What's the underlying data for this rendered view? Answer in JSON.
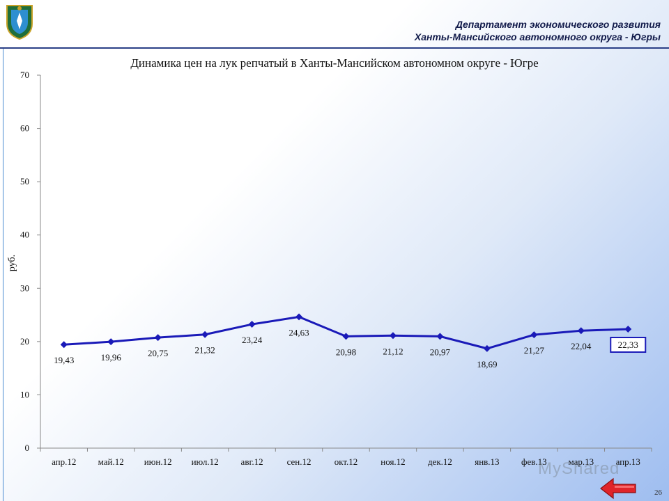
{
  "header": {
    "department_line1": "Департамент экономического развития",
    "department_line2": "Ханты-Мансийского автономного округа - Югры",
    "logo_icon": "coat-of-arms-icon"
  },
  "watermark": "MyShared",
  "page_number": "26",
  "nav": {
    "back_icon": "red-arrow-left-icon"
  },
  "chart_data": {
    "type": "line",
    "title": "Динамика цен на лук репчатый в Ханты-Мансийском автономном округе - Югре",
    "ylabel": "руб.",
    "xlabel": "",
    "categories": [
      "апр.12",
      "май.12",
      "июн.12",
      "июл.12",
      "авг.12",
      "сен.12",
      "окт.12",
      "ноя.12",
      "дек.12",
      "янв.13",
      "фев.13",
      "мар.13",
      "апр.13"
    ],
    "series": [
      {
        "values": [
          19.43,
          19.96,
          20.75,
          21.32,
          23.24,
          24.63,
          20.98,
          21.12,
          20.97,
          18.69,
          21.27,
          22.04,
          22.33
        ],
        "labels": [
          "19,43",
          "19,96",
          "20,75",
          "21,32",
          "23,24",
          "24,63",
          "20,98",
          "21,12",
          "20,97",
          "18,69",
          "21,27",
          "22,04",
          "22,33"
        ],
        "color": "#1a1ab8"
      }
    ],
    "ylim": [
      0,
      70
    ],
    "yticks": [
      0,
      10,
      20,
      30,
      40,
      50,
      60,
      70
    ],
    "grid": false,
    "legend": "none",
    "highlighted_label_index": 12
  }
}
